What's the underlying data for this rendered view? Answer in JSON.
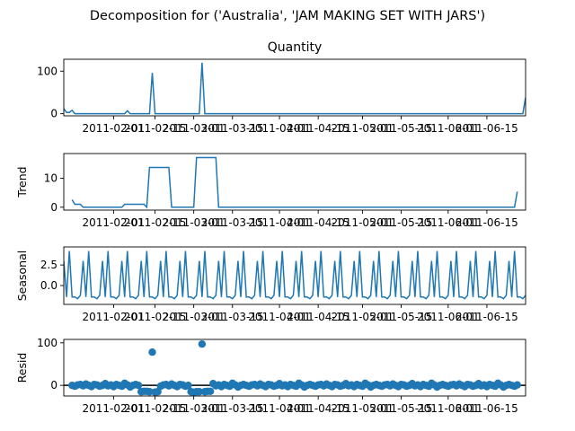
{
  "figure": {
    "suptitle": "Decomposition for ('Australia', 'JAM MAKING SET WITH JARS')",
    "line_color": "#1f77b4"
  },
  "chart_data": [
    {
      "id": "observed",
      "type": "line",
      "title": "Quantity",
      "ylabel": "",
      "ylim": [
        -5,
        128
      ],
      "yticks": [
        "0",
        "100"
      ],
      "ytick_values": [
        0,
        100
      ],
      "xlim": [
        0,
        167
      ],
      "xticks": [
        "2011-02-01",
        "2011-02-15",
        "2011-03-01",
        "2011-03-15",
        "2011-04-01",
        "2011-04-15",
        "2011-05-01",
        "2011-05-15",
        "2011-06-01",
        "2011-06-15"
      ],
      "xtick_values": [
        18,
        33,
        47,
        61,
        78,
        92,
        108,
        122,
        139,
        153
      ],
      "x": [
        0,
        1,
        2,
        3,
        4,
        5,
        6,
        7,
        8,
        9,
        10,
        11,
        12,
        13,
        14,
        15,
        16,
        17,
        18,
        19,
        20,
        21,
        22,
        23,
        24,
        25,
        26,
        27,
        28,
        29,
        30,
        31,
        32,
        33,
        34,
        35,
        36,
        37,
        38,
        39,
        40,
        41,
        42,
        43,
        44,
        45,
        46,
        47,
        48,
        49,
        50,
        51,
        52,
        53,
        54,
        55,
        56,
        57,
        58,
        59,
        60,
        167
      ],
      "y": [
        12,
        3,
        3,
        8,
        0,
        0,
        0,
        0,
        0,
        0,
        0,
        0,
        0,
        0,
        0,
        0,
        0,
        0,
        0,
        0,
        0,
        0,
        0,
        7,
        0,
        0,
        0,
        0,
        0,
        0,
        0,
        0,
        96,
        0,
        0,
        0,
        0,
        0,
        0,
        0,
        0,
        0,
        0,
        0,
        0,
        0,
        0,
        0,
        0,
        0,
        120,
        0,
        0,
        0,
        0,
        0,
        0,
        0,
        0,
        0,
        0,
        38
      ]
    },
    {
      "id": "trend",
      "type": "line",
      "title": "",
      "ylabel": "Trend",
      "ylim": [
        -1,
        18.5
      ],
      "yticks": [
        "0",
        "10"
      ],
      "ytick_values": [
        0,
        10
      ],
      "xlim": [
        0,
        167
      ],
      "xticks": [
        "2011-02-01",
        "2011-02-15",
        "2011-03-01",
        "2011-03-15",
        "2011-04-01",
        "2011-04-15",
        "2011-05-01",
        "2011-05-15",
        "2011-06-01",
        "2011-06-15"
      ],
      "xtick_values": [
        18,
        33,
        47,
        61,
        78,
        92,
        108,
        122,
        139,
        153
      ],
      "x": [
        3,
        4,
        5,
        6,
        7,
        8,
        9,
        10,
        11,
        12,
        13,
        14,
        15,
        16,
        17,
        18,
        19,
        20,
        21,
        22,
        23,
        24,
        25,
        26,
        27,
        28,
        29,
        30,
        31,
        32,
        33,
        34,
        35,
        36,
        37,
        38,
        39,
        40,
        41,
        42,
        43,
        44,
        45,
        46,
        47,
        48,
        49,
        50,
        51,
        52,
        53,
        54,
        55,
        56,
        57,
        160,
        161,
        162,
        163,
        164
      ],
      "y": [
        2.6,
        1.0,
        1.0,
        1.0,
        0,
        0,
        0,
        0,
        0,
        0,
        0,
        0,
        0,
        0,
        0,
        0,
        0,
        0,
        0,
        1.0,
        1.0,
        1.0,
        1.0,
        1.0,
        1.0,
        1.0,
        1.0,
        0,
        13.7,
        13.7,
        13.7,
        13.7,
        13.7,
        13.7,
        13.7,
        13.7,
        0,
        0,
        0,
        0,
        0,
        0,
        0,
        0,
        0,
        17.1,
        17.1,
        17.1,
        17.1,
        17.1,
        17.1,
        17.1,
        17.1,
        0,
        0,
        0,
        0,
        0,
        0,
        5.4
      ]
    },
    {
      "id": "seasonal",
      "type": "line",
      "title": "",
      "ylabel": "Seasonal",
      "ylim": [
        -2.3,
        4.7
      ],
      "yticks": [
        "0.0",
        "2.5"
      ],
      "ytick_values": [
        0,
        2.5
      ],
      "xlim": [
        0,
        167
      ],
      "xticks": [
        "2011-02-01",
        "2011-02-15",
        "2011-03-01",
        "2011-03-15",
        "2011-04-01",
        "2011-04-15",
        "2011-05-01",
        "2011-05-15",
        "2011-06-01",
        "2011-06-15"
      ],
      "xtick_values": [
        18,
        33,
        47,
        61,
        78,
        92,
        108,
        122,
        139,
        153
      ],
      "period": 7,
      "pattern": [
        3.0,
        -1.4,
        4.2,
        -1.4,
        -1.4,
        -1.6,
        -1.2
      ]
    },
    {
      "id": "resid",
      "type": "scatter",
      "title": "",
      "ylabel": "Resid",
      "ylim": [
        -25,
        108
      ],
      "yticks": [
        "0",
        "100"
      ],
      "ytick_values": [
        0,
        100
      ],
      "xlim": [
        0,
        167
      ],
      "xticks": [
        "2011-02-01",
        "2011-02-15",
        "2011-03-01",
        "2011-03-15",
        "2011-04-01",
        "2011-04-15",
        "2011-05-01",
        "2011-05-15",
        "2011-06-01",
        "2011-06-15"
      ],
      "xtick_values": [
        18,
        33,
        47,
        61,
        78,
        92,
        108,
        122,
        139,
        153
      ],
      "zero_line": true,
      "x_start": 3,
      "x_end": 164,
      "y_outliers": {
        "32": 78,
        "50": 97
      },
      "y_dips": {
        "28": -15,
        "29": -14,
        "30": -14,
        "31": -15,
        "33": -16,
        "34": -15,
        "46": -15,
        "47": -16,
        "48": -15,
        "49": -15,
        "51": -15,
        "52": -14,
        "53": -14
      },
      "y_small": [
        0,
        -2,
        1,
        2,
        -1,
        3,
        0,
        -3,
        2,
        1,
        -2,
        0,
        4,
        -1,
        1,
        -3,
        2,
        0,
        -2,
        5,
        1,
        -4,
        0,
        2
      ]
    }
  ]
}
